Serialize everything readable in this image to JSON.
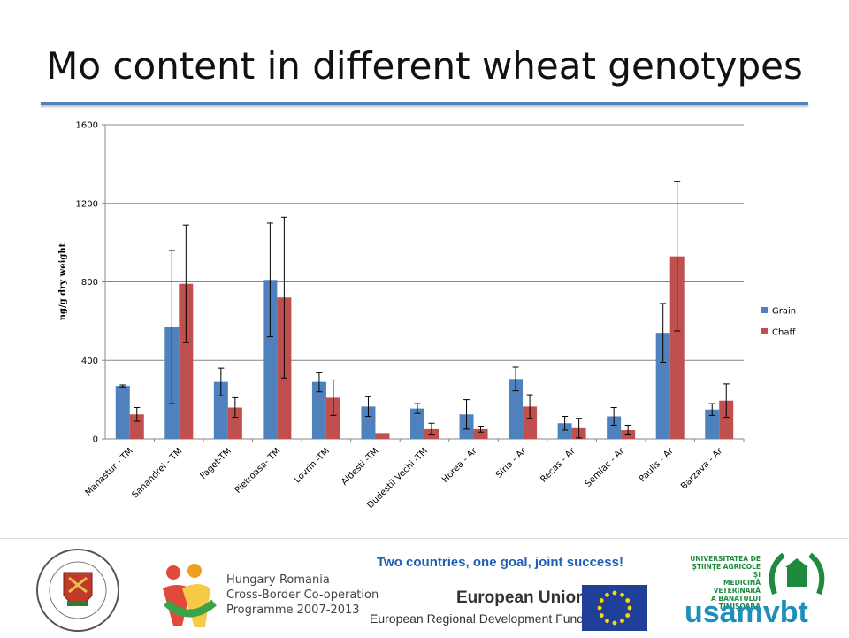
{
  "title": "Mo content in different wheat genotypes",
  "footer": {
    "slogan": "Two countries, one goal, joint success!",
    "hr_programme": [
      "Hungary-Romania",
      "Cross-Border Co-operation",
      "Programme 2007-2013"
    ],
    "eu_title": "European Union",
    "eu_subtitle": "European Regional Development Fund",
    "szeged_seal_text": "UNIVERSITAS SCIENTIARUM SZEGEDIENSIS · SZEGEDI TUDOMÁNYEGYETEM",
    "usamvbt_text": [
      "UNIVERSITATEA DE",
      "ŞTIINŢE AGRICOLE ŞI",
      "MEDICINĂ VETERINARĂ",
      "A BANATULUI TIMIŞOARA"
    ],
    "usamvbt_word": "usamvbt"
  },
  "chart_data": {
    "type": "bar",
    "title": "",
    "xlabel": "",
    "ylabel": "ng/g dry weight",
    "ylim": [
      0,
      1600
    ],
    "yticks": [
      0,
      400,
      800,
      1200,
      1600
    ],
    "grid": true,
    "legend_position": "right",
    "categories": [
      "Manastur - TM",
      "Sanandrei - TM",
      "Faget-TM",
      "Pietroasa- TM",
      "Lovrin -TM",
      "Aldesti -TM",
      "Dudestii Vechi -TM",
      "Horea - Ar",
      "Siria - Ar",
      "Recas - Ar",
      "Semlac - Ar",
      "Paulis - Ar",
      "Barzava - Ar"
    ],
    "series": [
      {
        "name": "Grain",
        "color": "#4f81bd",
        "values": [
          270,
          570,
          290,
          810,
          290,
          165,
          155,
          125,
          305,
          80,
          115,
          540,
          150
        ],
        "errors": [
          5,
          390,
          70,
          290,
          50,
          50,
          25,
          75,
          60,
          35,
          45,
          150,
          30
        ]
      },
      {
        "name": "Chaff",
        "color": "#c0504d",
        "values": [
          125,
          790,
          160,
          720,
          210,
          30,
          50,
          50,
          165,
          55,
          45,
          930,
          195
        ],
        "errors": [
          35,
          300,
          50,
          410,
          90,
          0,
          30,
          15,
          60,
          50,
          25,
          380,
          85
        ]
      }
    ]
  }
}
